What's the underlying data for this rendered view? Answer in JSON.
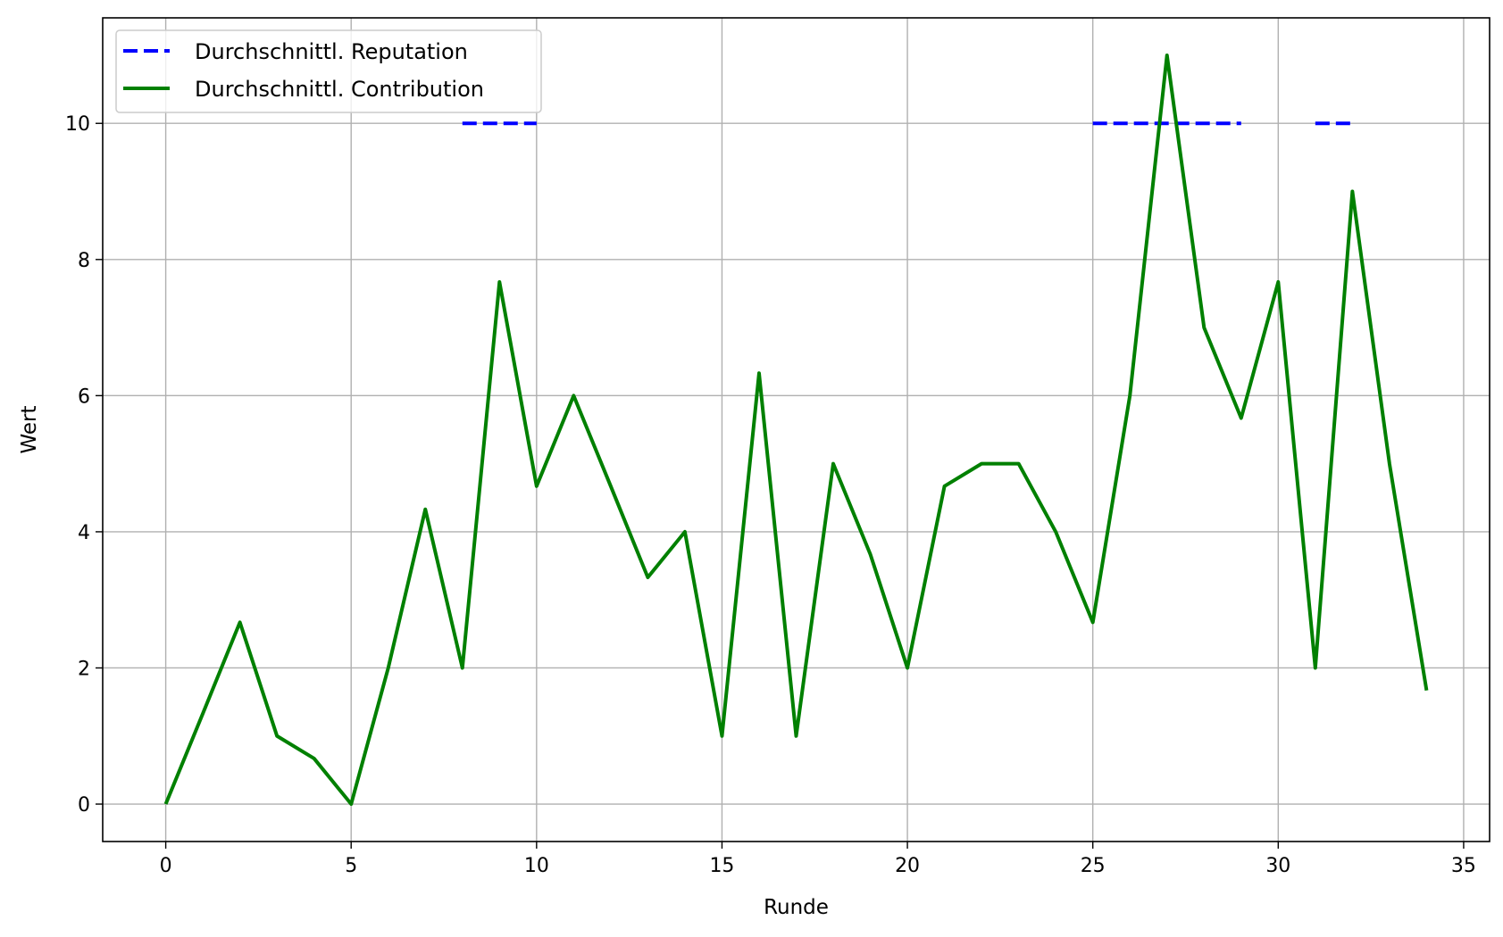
{
  "chart_data": {
    "type": "line",
    "xlabel": "Runde",
    "ylabel": "Wert",
    "xlim": [
      -1.7,
      35.7
    ],
    "ylim": [
      -0.55,
      11.55
    ],
    "xticks": [
      0,
      5,
      10,
      15,
      20,
      25,
      30,
      35
    ],
    "yticks": [
      0,
      2,
      4,
      6,
      8,
      10
    ],
    "grid": true,
    "legend_position": "top-left",
    "series": [
      {
        "name": "Durchschnittl. Reputation",
        "color": "#0000ff",
        "style": "dashed",
        "segments": [
          {
            "x": [
              8,
              9,
              10
            ],
            "y": [
              10,
              10,
              10
            ]
          },
          {
            "x": [
              25,
              26,
              27,
              28,
              29
            ],
            "y": [
              10,
              10,
              10,
              10,
              10
            ]
          },
          {
            "x": [
              31,
              32
            ],
            "y": [
              10,
              10
            ]
          }
        ]
      },
      {
        "name": "Durchschnittl. Contribution",
        "color": "#008000",
        "style": "solid",
        "x": [
          0,
          1,
          2,
          3,
          4,
          5,
          6,
          7,
          8,
          9,
          10,
          11,
          12,
          13,
          14,
          15,
          16,
          17,
          18,
          19,
          20,
          21,
          22,
          23,
          24,
          25,
          26,
          27,
          28,
          29,
          30,
          31,
          32,
          33,
          34
        ],
        "y": [
          0,
          1.33,
          2.67,
          1,
          0.67,
          0,
          2,
          4.33,
          2,
          7.67,
          4.67,
          6,
          4.67,
          3.33,
          4,
          1,
          6.33,
          1,
          5,
          3.67,
          2,
          4.67,
          5,
          5,
          4,
          2.67,
          6,
          11,
          7,
          5.67,
          7.67,
          2,
          9,
          5,
          1.67
        ]
      }
    ]
  }
}
